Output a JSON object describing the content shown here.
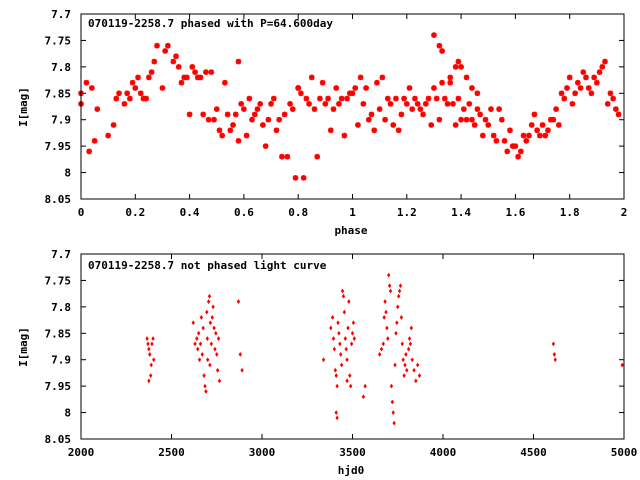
{
  "chart_data": [
    {
      "type": "scatter",
      "title": "070119-2258.7 phased with P=64.600day",
      "xlabel": "phase",
      "ylabel": "I[mag]",
      "xlim": [
        0,
        2
      ],
      "ylim": [
        8.05,
        7.7
      ],
      "y_reversed": true,
      "xticks": [
        "0",
        "0.2",
        "0.4",
        "0.6",
        "0.8",
        "1",
        "1.2",
        "1.4",
        "1.6",
        "1.8",
        "2"
      ],
      "xtick_values": [
        0,
        0.2,
        0.4,
        0.6,
        0.8,
        1,
        1.2,
        1.4,
        1.6,
        1.8,
        2
      ],
      "yticks": [
        "7.7",
        "7.75",
        "7.8",
        "7.85",
        "7.9",
        "7.95",
        "8",
        "8.05"
      ],
      "ytick_values": [
        7.7,
        7.75,
        7.8,
        7.85,
        7.9,
        7.95,
        8.0,
        8.05
      ],
      "marker_color": "#ff0000",
      "marker": "star",
      "grid": false,
      "points": [
        [
          0.0,
          7.85
        ],
        [
          0.02,
          7.83
        ],
        [
          0.03,
          7.96
        ],
        [
          0.04,
          7.84
        ],
        [
          0.05,
          7.94
        ],
        [
          0.06,
          7.88
        ],
        [
          0.1,
          7.93
        ],
        [
          0.12,
          7.91
        ],
        [
          0.13,
          7.86
        ],
        [
          0.14,
          7.85
        ],
        [
          0.16,
          7.87
        ],
        [
          0.17,
          7.85
        ],
        [
          0.18,
          7.86
        ],
        [
          0.19,
          7.83
        ],
        [
          0.2,
          7.84
        ],
        [
          0.21,
          7.82
        ],
        [
          0.22,
          7.85
        ],
        [
          0.23,
          7.86
        ],
        [
          0.24,
          7.86
        ],
        [
          0.25,
          7.82
        ],
        [
          0.26,
          7.81
        ],
        [
          0.27,
          7.79
        ],
        [
          0.28,
          7.76
        ],
        [
          0.3,
          7.84
        ],
        [
          0.31,
          7.77
        ],
        [
          0.32,
          7.76
        ],
        [
          0.34,
          7.79
        ],
        [
          0.35,
          7.78
        ],
        [
          0.36,
          7.8
        ],
        [
          0.37,
          7.83
        ],
        [
          0.38,
          7.82
        ],
        [
          0.39,
          7.82
        ],
        [
          0.4,
          7.89
        ],
        [
          0.41,
          7.8
        ],
        [
          0.42,
          7.81
        ],
        [
          0.43,
          7.82
        ],
        [
          0.44,
          7.82
        ],
        [
          0.45,
          7.89
        ],
        [
          0.46,
          7.81
        ],
        [
          0.47,
          7.9
        ],
        [
          0.48,
          7.81
        ],
        [
          0.49,
          7.9
        ],
        [
          0.5,
          7.88
        ],
        [
          0.51,
          7.92
        ],
        [
          0.52,
          7.93
        ],
        [
          0.53,
          7.83
        ],
        [
          0.54,
          7.89
        ],
        [
          0.55,
          7.92
        ],
        [
          0.56,
          7.91
        ],
        [
          0.57,
          7.89
        ],
        [
          0.58,
          7.94
        ],
        [
          0.59,
          7.87
        ],
        [
          0.6,
          7.88
        ],
        [
          0.61,
          7.93
        ],
        [
          0.62,
          7.86
        ],
        [
          0.63,
          7.9
        ],
        [
          0.64,
          7.89
        ],
        [
          0.65,
          7.88
        ],
        [
          0.66,
          7.87
        ],
        [
          0.67,
          7.91
        ],
        [
          0.68,
          7.95
        ],
        [
          0.69,
          7.9
        ],
        [
          0.7,
          7.87
        ],
        [
          0.71,
          7.86
        ],
        [
          0.72,
          7.92
        ],
        [
          0.73,
          7.9
        ],
        [
          0.74,
          7.97
        ],
        [
          0.75,
          7.89
        ],
        [
          0.76,
          7.97
        ],
        [
          0.77,
          7.87
        ],
        [
          0.78,
          7.88
        ],
        [
          0.79,
          8.01
        ],
        [
          0.8,
          7.84
        ],
        [
          0.81,
          7.85
        ],
        [
          0.82,
          8.01
        ],
        [
          0.83,
          7.86
        ],
        [
          0.84,
          7.87
        ],
        [
          0.85,
          7.82
        ],
        [
          0.86,
          7.88
        ],
        [
          0.87,
          7.97
        ],
        [
          0.88,
          7.86
        ],
        [
          0.89,
          7.83
        ],
        [
          0.9,
          7.87
        ],
        [
          0.91,
          7.86
        ],
        [
          0.92,
          7.92
        ],
        [
          0.93,
          7.88
        ],
        [
          0.94,
          7.84
        ],
        [
          0.95,
          7.87
        ],
        [
          0.96,
          7.86
        ],
        [
          0.97,
          7.93
        ],
        [
          0.98,
          7.86
        ],
        [
          0.99,
          7.85
        ],
        [
          1.0,
          7.85
        ],
        [
          1.01,
          7.84
        ],
        [
          1.02,
          7.91
        ],
        [
          1.03,
          7.82
        ],
        [
          1.04,
          7.87
        ],
        [
          1.05,
          7.84
        ],
        [
          1.06,
          7.9
        ],
        [
          1.07,
          7.89
        ],
        [
          1.08,
          7.92
        ],
        [
          1.09,
          7.83
        ],
        [
          1.1,
          7.88
        ],
        [
          1.11,
          7.82
        ],
        [
          1.12,
          7.9
        ],
        [
          1.13,
          7.86
        ],
        [
          1.14,
          7.87
        ],
        [
          1.15,
          7.91
        ],
        [
          1.16,
          7.86
        ],
        [
          1.17,
          7.92
        ],
        [
          1.18,
          7.89
        ],
        [
          1.19,
          7.86
        ],
        [
          1.2,
          7.87
        ],
        [
          1.21,
          7.84
        ],
        [
          1.22,
          7.88
        ],
        [
          1.23,
          7.86
        ],
        [
          1.24,
          7.87
        ],
        [
          1.25,
          7.88
        ],
        [
          1.26,
          7.89
        ],
        [
          1.27,
          7.87
        ],
        [
          1.28,
          7.86
        ],
        [
          1.29,
          7.91
        ],
        [
          1.3,
          7.84
        ],
        [
          1.31,
          7.86
        ],
        [
          1.32,
          7.9
        ],
        [
          1.33,
          7.83
        ],
        [
          1.34,
          7.86
        ],
        [
          1.35,
          7.87
        ],
        [
          1.36,
          7.82
        ],
        [
          1.37,
          7.87
        ],
        [
          1.38,
          7.91
        ],
        [
          1.39,
          7.86
        ],
        [
          1.4,
          7.9
        ],
        [
          1.41,
          7.88
        ],
        [
          1.42,
          7.9
        ],
        [
          1.43,
          7.87
        ],
        [
          1.44,
          7.9
        ],
        [
          1.45,
          7.91
        ],
        [
          1.46,
          7.88
        ],
        [
          1.47,
          7.89
        ],
        [
          1.48,
          7.93
        ],
        [
          1.49,
          7.9
        ],
        [
          1.5,
          7.91
        ],
        [
          1.51,
          7.88
        ],
        [
          1.52,
          7.93
        ],
        [
          1.53,
          7.94
        ],
        [
          1.54,
          7.88
        ],
        [
          1.55,
          7.9
        ],
        [
          1.56,
          7.94
        ],
        [
          1.57,
          7.96
        ],
        [
          1.58,
          7.92
        ],
        [
          1.59,
          7.95
        ],
        [
          1.6,
          7.95
        ],
        [
          1.61,
          7.97
        ],
        [
          1.62,
          7.96
        ],
        [
          1.63,
          7.93
        ],
        [
          1.64,
          7.94
        ],
        [
          1.65,
          7.93
        ],
        [
          1.66,
          7.91
        ],
        [
          1.67,
          7.89
        ],
        [
          1.68,
          7.92
        ],
        [
          1.69,
          7.93
        ],
        [
          1.7,
          7.91
        ],
        [
          1.71,
          7.93
        ],
        [
          1.72,
          7.92
        ],
        [
          1.73,
          7.9
        ],
        [
          1.74,
          7.9
        ],
        [
          1.75,
          7.88
        ],
        [
          1.76,
          7.91
        ],
        [
          1.77,
          7.85
        ],
        [
          1.78,
          7.86
        ],
        [
          1.79,
          7.84
        ],
        [
          1.8,
          7.82
        ],
        [
          1.81,
          7.87
        ],
        [
          1.82,
          7.85
        ],
        [
          1.83,
          7.83
        ],
        [
          1.84,
          7.84
        ],
        [
          1.85,
          7.81
        ],
        [
          1.86,
          7.82
        ],
        [
          1.87,
          7.84
        ],
        [
          1.88,
          7.85
        ],
        [
          1.89,
          7.82
        ],
        [
          1.9,
          7.83
        ],
        [
          1.91,
          7.81
        ],
        [
          1.92,
          7.8
        ],
        [
          1.93,
          7.79
        ],
        [
          1.94,
          7.87
        ],
        [
          1.95,
          7.85
        ],
        [
          1.96,
          7.86
        ],
        [
          1.97,
          7.88
        ],
        [
          1.98,
          7.89
        ],
        [
          0.0,
          7.87
        ],
        [
          1.3,
          7.74
        ],
        [
          1.32,
          7.76
        ],
        [
          1.33,
          7.77
        ],
        [
          1.36,
          7.83
        ],
        [
          1.39,
          7.79
        ],
        [
          1.4,
          7.8
        ],
        [
          1.38,
          7.8
        ],
        [
          1.42,
          7.82
        ],
        [
          1.44,
          7.84
        ],
        [
          1.46,
          7.85
        ],
        [
          0.58,
          7.79
        ],
        [
          0.8,
          7.84
        ]
      ]
    },
    {
      "type": "scatter",
      "title": "070119-2258.7 not phased light curve",
      "xlabel": "hjd0",
      "ylabel": "I[mag]",
      "xlim": [
        2000,
        5000
      ],
      "ylim": [
        8.05,
        7.7
      ],
      "y_reversed": true,
      "xticks": [
        "2000",
        "2500",
        "3000",
        "3500",
        "4000",
        "4500",
        "5000"
      ],
      "xtick_values": [
        2000,
        2500,
        3000,
        3500,
        4000,
        4500,
        5000
      ],
      "yticks": [
        "7.7",
        "7.75",
        "7.8",
        "7.85",
        "7.9",
        "7.95",
        "8",
        "8.05"
      ],
      "ytick_values": [
        7.7,
        7.75,
        7.8,
        7.85,
        7.9,
        7.95,
        8.0,
        8.05
      ],
      "marker_color": "#ff0000",
      "marker": "diamond",
      "grid": false,
      "points": [
        [
          2365,
          7.86
        ],
        [
          2370,
          7.87
        ],
        [
          2375,
          7.88
        ],
        [
          2380,
          7.89
        ],
        [
          2385,
          7.93
        ],
        [
          2388,
          7.91
        ],
        [
          2392,
          7.87
        ],
        [
          2398,
          7.86
        ],
        [
          2402,
          7.9
        ],
        [
          2375,
          7.94
        ],
        [
          2620,
          7.83
        ],
        [
          2630,
          7.87
        ],
        [
          2640,
          7.86
        ],
        [
          2645,
          7.88
        ],
        [
          2650,
          7.85
        ],
        [
          2655,
          7.9
        ],
        [
          2660,
          7.87
        ],
        [
          2665,
          7.82
        ],
        [
          2670,
          7.89
        ],
        [
          2675,
          7.84
        ],
        [
          2680,
          7.93
        ],
        [
          2685,
          7.95
        ],
        [
          2690,
          7.96
        ],
        [
          2695,
          7.81
        ],
        [
          2698,
          7.86
        ],
        [
          2700,
          7.9
        ],
        [
          2705,
          7.79
        ],
        [
          2710,
          7.78
        ],
        [
          2715,
          7.83
        ],
        [
          2720,
          7.87
        ],
        [
          2725,
          7.82
        ],
        [
          2730,
          7.8
        ],
        [
          2735,
          7.84
        ],
        [
          2740,
          7.88
        ],
        [
          2745,
          7.85
        ],
        [
          2750,
          7.89
        ],
        [
          2755,
          7.92
        ],
        [
          2760,
          7.86
        ],
        [
          2765,
          7.94
        ],
        [
          2712,
          7.91
        ],
        [
          2870,
          7.79
        ],
        [
          2880,
          7.89
        ],
        [
          2890,
          7.92
        ],
        [
          3340,
          7.9
        ],
        [
          3380,
          7.84
        ],
        [
          3390,
          7.82
        ],
        [
          3395,
          7.86
        ],
        [
          3400,
          7.88
        ],
        [
          3405,
          7.92
        ],
        [
          3410,
          7.93
        ],
        [
          3415,
          7.95
        ],
        [
          3420,
          7.83
        ],
        [
          3425,
          7.85
        ],
        [
          3430,
          7.87
        ],
        [
          3435,
          7.89
        ],
        [
          3440,
          7.91
        ],
        [
          3445,
          7.77
        ],
        [
          3450,
          7.78
        ],
        [
          3455,
          7.81
        ],
        [
          3460,
          7.86
        ],
        [
          3465,
          7.88
        ],
        [
          3470,
          7.9
        ],
        [
          3475,
          7.84
        ],
        [
          3480,
          7.79
        ],
        [
          3485,
          7.93
        ],
        [
          3490,
          7.95
        ],
        [
          3495,
          7.87
        ],
        [
          3500,
          7.85
        ],
        [
          3410,
          8.0
        ],
        [
          3415,
          8.01
        ],
        [
          3470,
          7.94
        ],
        [
          3505,
          7.83
        ],
        [
          3510,
          7.86
        ],
        [
          3560,
          7.97
        ],
        [
          3570,
          7.95
        ],
        [
          3650,
          7.89
        ],
        [
          3660,
          7.88
        ],
        [
          3670,
          7.87
        ],
        [
          3675,
          7.82
        ],
        [
          3680,
          7.79
        ],
        [
          3685,
          7.81
        ],
        [
          3690,
          7.84
        ],
        [
          3695,
          7.86
        ],
        [
          3700,
          7.74
        ],
        [
          3705,
          7.76
        ],
        [
          3710,
          7.77
        ],
        [
          3715,
          7.95
        ],
        [
          3720,
          7.98
        ],
        [
          3725,
          8.0
        ],
        [
          3730,
          8.02
        ],
        [
          3735,
          7.91
        ],
        [
          3740,
          7.85
        ],
        [
          3745,
          7.83
        ],
        [
          3750,
          7.8
        ],
        [
          3755,
          7.78
        ],
        [
          3760,
          7.77
        ],
        [
          3765,
          7.76
        ],
        [
          3770,
          7.82
        ],
        [
          3775,
          7.87
        ],
        [
          3780,
          7.9
        ],
        [
          3785,
          7.93
        ],
        [
          3790,
          7.91
        ],
        [
          3795,
          7.89
        ],
        [
          3800,
          7.92
        ],
        [
          3810,
          7.88
        ],
        [
          3820,
          7.87
        ],
        [
          3830,
          7.9
        ],
        [
          3840,
          7.92
        ],
        [
          3850,
          7.94
        ],
        [
          3860,
          7.91
        ],
        [
          3870,
          7.93
        ],
        [
          3815,
          7.86
        ],
        [
          3825,
          7.84
        ],
        [
          4610,
          7.87
        ],
        [
          4620,
          7.9
        ],
        [
          4615,
          7.89
        ],
        [
          4990,
          7.91
        ]
      ]
    }
  ]
}
